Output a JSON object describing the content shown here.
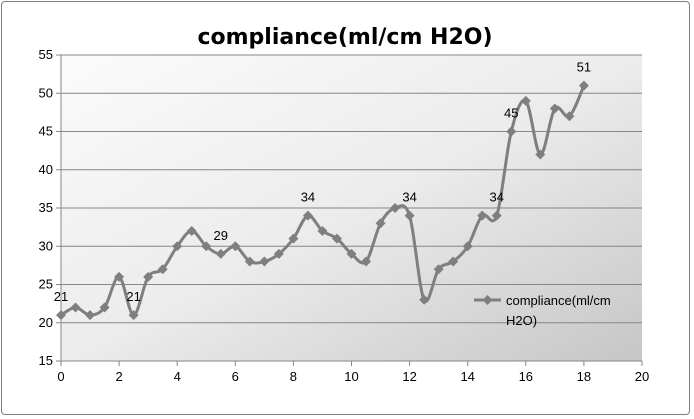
{
  "chart_data": {
    "type": "line",
    "title": "compliance(ml/cm H2O)",
    "xlabel": "",
    "ylabel": "",
    "xlim": [
      0,
      20
    ],
    "ylim": [
      15,
      55
    ],
    "x_ticks": [
      0,
      2,
      4,
      6,
      8,
      10,
      12,
      14,
      16,
      18,
      20
    ],
    "y_ticks": [
      15,
      20,
      25,
      30,
      35,
      40,
      45,
      50,
      55
    ],
    "grid": "horizontal",
    "legend_position": "right",
    "series": [
      {
        "name": "compliance(ml/cm H2O)",
        "color": "#7f7f7f",
        "marker": "diamond",
        "x": [
          0,
          0.5,
          1,
          1.5,
          2,
          2.5,
          3,
          3.5,
          4,
          4.5,
          5,
          5.5,
          6,
          6.5,
          7,
          7.5,
          8,
          8.5,
          9,
          9.5,
          10,
          10.5,
          11,
          11.5,
          12,
          12.5,
          13,
          13.5,
          14,
          14.5,
          15,
          15.5,
          16,
          16.5,
          17,
          17.5,
          18
        ],
        "y": [
          21,
          22,
          21,
          22,
          26,
          21,
          26,
          27,
          30,
          32,
          30,
          29,
          30,
          28,
          28,
          29,
          31,
          34,
          32,
          31,
          29,
          28,
          33,
          35,
          34,
          23,
          27,
          28,
          30,
          34,
          34,
          45,
          49,
          42,
          48,
          47,
          51
        ]
      }
    ],
    "data_labels": [
      {
        "x": 0,
        "y": 21,
        "text": "21"
      },
      {
        "x": 2.5,
        "y": 21,
        "text": "21"
      },
      {
        "x": 5.5,
        "y": 29,
        "text": "29"
      },
      {
        "x": 8.5,
        "y": 34,
        "text": "34"
      },
      {
        "x": 12,
        "y": 34,
        "text": "34"
      },
      {
        "x": 15,
        "y": 34,
        "text": "34"
      },
      {
        "x": 15.5,
        "y": 45,
        "text": "45"
      },
      {
        "x": 18,
        "y": 51,
        "text": "51"
      }
    ],
    "legend_lines": [
      "compliance(ml/cm",
      "H2O)"
    ]
  }
}
